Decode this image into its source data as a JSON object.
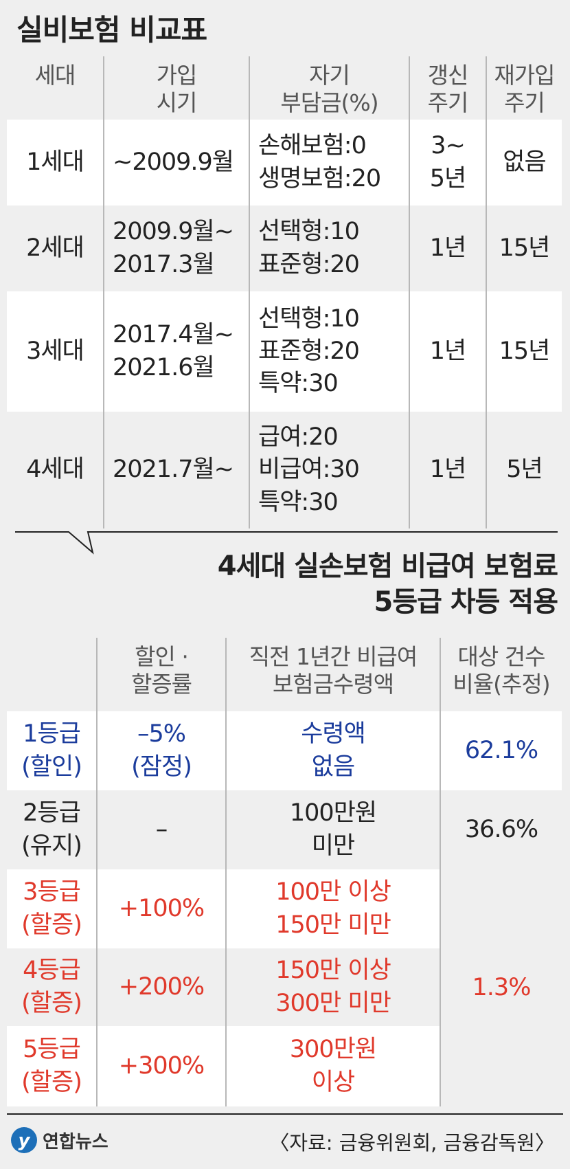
{
  "table1": {
    "title": "실비보험 비교표",
    "header": [
      [
        "세대"
      ],
      [
        "가입",
        "시기"
      ],
      [
        "자기",
        "부담금(%)"
      ],
      [
        "갱신",
        "주기"
      ],
      [
        "재가입",
        "주기"
      ]
    ],
    "rows": [
      [
        [
          "1세대"
        ],
        [
          "~2009.9월"
        ],
        [
          "손해보험:0",
          "생명보험:20"
        ],
        [
          "3~",
          "5년"
        ],
        [
          "없음"
        ]
      ],
      [
        [
          "2세대"
        ],
        [
          "2009.9월~",
          "2017.3월"
        ],
        [
          "선택형:10",
          "표준형:20"
        ],
        [
          "1년"
        ],
        [
          "15년"
        ]
      ],
      [
        [
          "3세대"
        ],
        [
          "2017.4월~",
          "2021.6월"
        ],
        [
          "선택형:10",
          "표준형:20",
          "특약:30"
        ],
        [
          "1년"
        ],
        [
          "15년"
        ]
      ],
      [
        [
          "4세대"
        ],
        [
          "2021.7월~"
        ],
        [
          "급여:20",
          "비급여:30",
          "특약:30"
        ],
        [
          "1년"
        ],
        [
          "5년"
        ]
      ]
    ]
  },
  "table2": {
    "title": [
      "4세대 실손보험 비급여 보험료",
      "5등급 차등 적용"
    ],
    "header": [
      [
        "할인 ·",
        "할증률"
      ],
      [
        "직전 1년간 비급여",
        "보험금수령액"
      ],
      [
        "대상 건수",
        "비율(추정)"
      ]
    ],
    "rows": [
      {
        "grade": [
          "1등급",
          "(할인)"
        ],
        "rate": [
          "–5%",
          "(잠정)"
        ],
        "amount": [
          "수령액",
          "없음"
        ],
        "share": [
          "62.1%"
        ]
      },
      {
        "grade": [
          "2등급",
          "(유지)"
        ],
        "rate": [
          "–"
        ],
        "amount": [
          "100만원",
          "미만"
        ],
        "share": [
          "36.6%"
        ]
      },
      {
        "grade": [
          "3등급",
          "(할증)"
        ],
        "rate": [
          "+100%"
        ],
        "amount": [
          "100만 이상",
          "150만 미만"
        ],
        "share": [
          "1.3%"
        ]
      },
      {
        "grade": [
          "4등급",
          "(할증)"
        ],
        "rate": [
          "+200%"
        ],
        "amount": [
          "150만 이상",
          "300만 미만"
        ]
      },
      {
        "grade": [
          "5등급",
          "(할증)"
        ],
        "rate": [
          "+300%"
        ],
        "amount": [
          "300만원",
          "이상"
        ]
      }
    ]
  },
  "footer": {
    "logo": "연합뉴스",
    "source": "〈자료: 금융위원회, 금융감독원〉"
  }
}
